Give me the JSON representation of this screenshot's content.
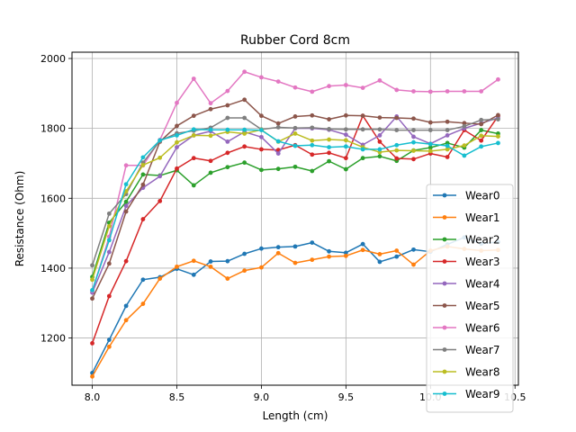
{
  "chart_data": {
    "type": "line",
    "title": "Rubber Cord 8cm",
    "xlabel": "Length (cm)",
    "ylabel": "Resistance (Ohm)",
    "xlim": [
      7.88,
      10.52
    ],
    "ylim": [
      1065,
      2018
    ],
    "xticks": [
      "8.0",
      "8.5",
      "9.0",
      "9.5",
      "10.0",
      "10.5"
    ],
    "yticks": [
      "1200",
      "1400",
      "1600",
      "1800",
      "2000"
    ],
    "grid": true,
    "legend_position": "lower right",
    "x": [
      8.0,
      8.1,
      8.2,
      8.3,
      8.4,
      8.5,
      8.6,
      8.7,
      8.8,
      8.9,
      9.0,
      9.1,
      9.2,
      9.3,
      9.4,
      9.5,
      9.6,
      9.7,
      9.8,
      9.9,
      10.0,
      10.1,
      10.2,
      10.3,
      10.4
    ],
    "series": [
      {
        "name": "Wear0",
        "color": "#1f77b4",
        "values": [
          1100,
          1195,
          1292,
          1367,
          1374,
          1398,
          1381,
          1419,
          1420,
          1441,
          1456,
          1460,
          1462,
          1473,
          1448,
          1444,
          1469,
          1418,
          1433,
          1453,
          1447,
          1468,
          1488,
          1470,
          1475
        ]
      },
      {
        "name": "Wear1",
        "color": "#ff7f0e",
        "values": [
          1090,
          1175,
          1251,
          1298,
          1370,
          1404,
          1421,
          1404,
          1370,
          1393,
          1402,
          1443,
          1415,
          1424,
          1433,
          1435,
          1452,
          1440,
          1450,
          1410,
          1450,
          1462,
          1455,
          1450,
          1452
        ]
      },
      {
        "name": "Wear2",
        "color": "#2ca02c",
        "values": [
          1375,
          1530,
          1590,
          1668,
          1665,
          1680,
          1637,
          1673,
          1689,
          1702,
          1681,
          1684,
          1690,
          1678,
          1706,
          1683,
          1715,
          1720,
          1707,
          1737,
          1745,
          1758,
          1745,
          1795,
          1785
        ]
      },
      {
        "name": "Wear3",
        "color": "#d62728",
        "values": [
          1185,
          1320,
          1420,
          1540,
          1592,
          1685,
          1715,
          1707,
          1730,
          1748,
          1740,
          1738,
          1752,
          1725,
          1730,
          1715,
          1836,
          1762,
          1714,
          1712,
          1728,
          1718,
          1795,
          1765,
          1835
        ]
      },
      {
        "name": "Wear4",
        "color": "#9467bd",
        "values": [
          1330,
          1446,
          1578,
          1630,
          1663,
          1746,
          1780,
          1792,
          1762,
          1790,
          1775,
          1728,
          1800,
          1800,
          1796,
          1782,
          1753,
          1780,
          1834,
          1776,
          1756,
          1780,
          1800,
          1815,
          1830
        ]
      },
      {
        "name": "Wear5",
        "color": "#8c564b",
        "values": [
          1313,
          1413,
          1562,
          1639,
          1762,
          1807,
          1836,
          1855,
          1866,
          1882,
          1836,
          1814,
          1834,
          1837,
          1826,
          1837,
          1836,
          1831,
          1830,
          1828,
          1817,
          1819,
          1815,
          1812,
          1838
        ]
      },
      {
        "name": "Wear6",
        "color": "#e377c2",
        "values": [
          1335,
          1490,
          1694,
          1694,
          1767,
          1873,
          1942,
          1872,
          1907,
          1962,
          1946,
          1934,
          1917,
          1905,
          1921,
          1924,
          1916,
          1937,
          1910,
          1906,
          1905,
          1906,
          1906,
          1906,
          1940
        ]
      },
      {
        "name": "Wear7",
        "color": "#7f7f7f",
        "values": [
          1408,
          1556,
          1612,
          1702,
          1764,
          1786,
          1793,
          1802,
          1830,
          1830,
          1797,
          1803,
          1801,
          1802,
          1798,
          1797,
          1797,
          1797,
          1795,
          1795,
          1795,
          1795,
          1806,
          1824,
          1826
        ]
      },
      {
        "name": "Wear8",
        "color": "#bcbd22",
        "values": [
          1367,
          1520,
          1620,
          1695,
          1716,
          1760,
          1780,
          1779,
          1790,
          1785,
          1796,
          1762,
          1785,
          1765,
          1768,
          1766,
          1746,
          1732,
          1737,
          1736,
          1735,
          1740,
          1751,
          1779,
          1777
        ]
      },
      {
        "name": "Wear9",
        "color": "#17becf",
        "values": [
          1337,
          1480,
          1640,
          1717,
          1766,
          1780,
          1797,
          1796,
          1796,
          1796,
          1795,
          1763,
          1750,
          1752,
          1746,
          1748,
          1740,
          1740,
          1752,
          1760,
          1755,
          1750,
          1722,
          1748,
          1758
        ]
      }
    ]
  }
}
